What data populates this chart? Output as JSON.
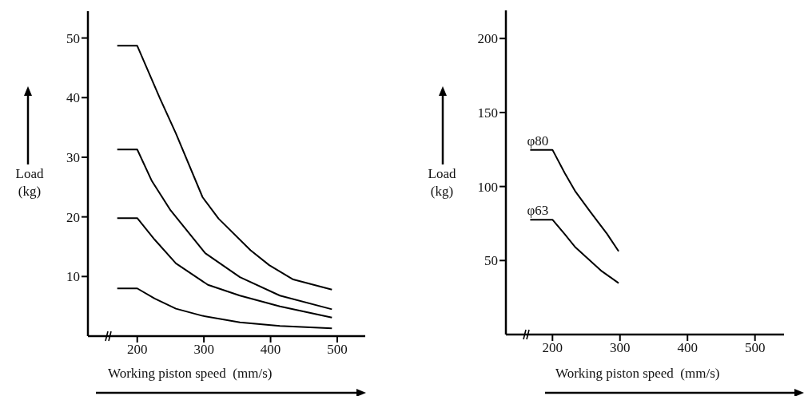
{
  "chart_data": [
    {
      "type": "line",
      "xlabel": "Working piston speed  (mm/s)",
      "ylabel": "Load (kg)",
      "xlim": [
        126,
        542
      ],
      "xticks": [
        200,
        300,
        400,
        500
      ],
      "ylim": [
        0,
        54.5
      ],
      "yticks": [
        10,
        20,
        30,
        40,
        50
      ],
      "marker": "none",
      "line_style": "solid",
      "series": [
        {
          "color": "#000000",
          "x": [
            170,
            200,
            234,
            258,
            298,
            322,
            370,
            398,
            434,
            492
          ],
          "values": [
            48.7,
            48.7,
            39.9,
            34.0,
            23.3,
            19.7,
            14.4,
            11.9,
            9.5,
            7.8
          ]
        },
        {
          "color": "#000000",
          "x": [
            170,
            200,
            222,
            250,
            302,
            354,
            414,
            492
          ],
          "values": [
            31.3,
            31.3,
            26.0,
            21.1,
            13.9,
            9.9,
            6.8,
            4.5
          ]
        },
        {
          "color": "#000000",
          "x": [
            170,
            200,
            226,
            258,
            306,
            354,
            414,
            492
          ],
          "values": [
            19.8,
            19.8,
            16.2,
            12.2,
            8.6,
            6.8,
            5.0,
            3.1
          ]
        },
        {
          "color": "#000000",
          "x": [
            170,
            200,
            226,
            258,
            298,
            354,
            414,
            492
          ],
          "values": [
            8.0,
            8.0,
            6.3,
            4.6,
            3.4,
            2.3,
            1.7,
            1.3
          ]
        }
      ]
    },
    {
      "type": "line",
      "xlabel": "Working piston speed  (mm/s)",
      "ylabel": "Load (kg)",
      "xlim": [
        131,
        543
      ],
      "xticks": [
        200,
        300,
        400,
        500
      ],
      "ylim": [
        0,
        219
      ],
      "yticks": [
        50,
        100,
        150,
        200
      ],
      "marker": "none",
      "line_style": "solid",
      "series": [
        {
          "name": "φ80",
          "color": "#000000",
          "x": [
            167,
            200,
            218,
            234,
            257,
            281,
            298
          ],
          "values": [
            124.8,
            124.8,
            109.2,
            96.6,
            82.3,
            67.9,
            56.2
          ]
        },
        {
          "name": "φ63",
          "color": "#000000",
          "x": [
            167,
            200,
            218,
            234,
            273,
            298
          ],
          "values": [
            77.6,
            77.6,
            67.9,
            58.9,
            42.8,
            34.7
          ]
        }
      ]
    }
  ]
}
